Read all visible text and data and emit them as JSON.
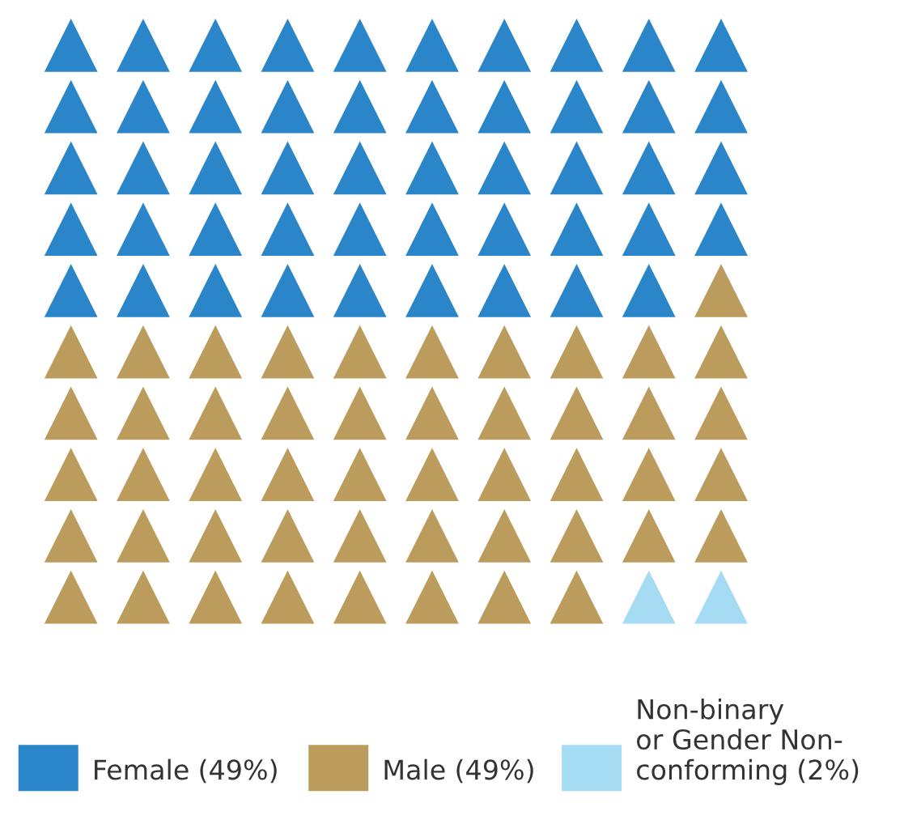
{
  "chart_data": {
    "type": "other",
    "categories": [
      "Female",
      "Male",
      "Non-binary\nor Gender Non-\nconforming"
    ],
    "values": [
      49,
      49,
      2
    ],
    "value_labels": [
      "(49%)",
      "(49%)",
      "(2%)"
    ],
    "colors": [
      "#2a86c9",
      "#bc9c5c",
      "#a6dcf3"
    ]
  }
}
